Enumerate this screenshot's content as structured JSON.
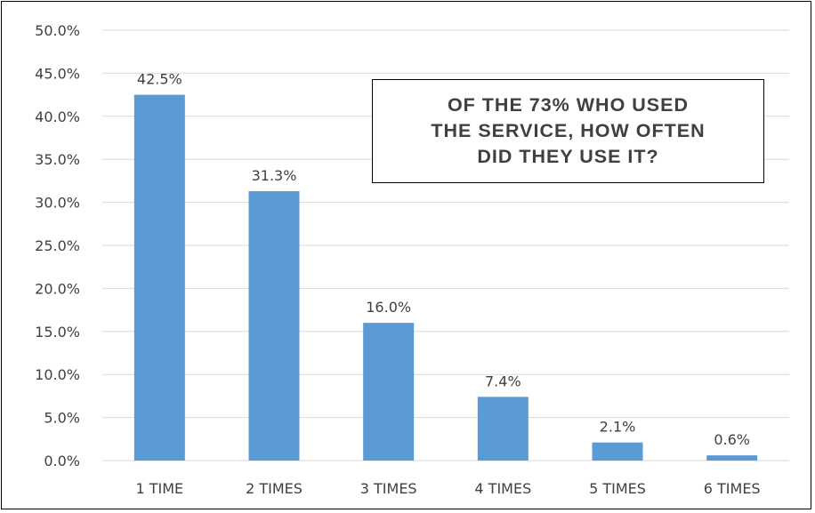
{
  "chart_data": {
    "type": "bar",
    "title": "OF THE 73% WHO USED\nTHE SERVICE, HOW OFTEN\nDID THEY USE IT?",
    "categories": [
      "1 TIME",
      "2 TIMES",
      "3 TIMES",
      "4 TIMES",
      "5 TIMES",
      "6 TIMES"
    ],
    "values": [
      42.5,
      31.3,
      16.0,
      7.4,
      2.1,
      0.6
    ],
    "data_labels": [
      "42.5%",
      "31.3%",
      "16.0%",
      "7.4%",
      "2.1%",
      "0.6%"
    ],
    "y_ticks": [
      "0.0%",
      "5.0%",
      "10.0%",
      "15.0%",
      "20.0%",
      "25.0%",
      "30.0%",
      "35.0%",
      "40.0%",
      "45.0%",
      "50.0%"
    ],
    "ylim": [
      0,
      50
    ],
    "grid": true,
    "legend": "none",
    "bar_color": "#5b9bd5",
    "grid_color": "#d9d9d9",
    "text_color": "#404040"
  }
}
